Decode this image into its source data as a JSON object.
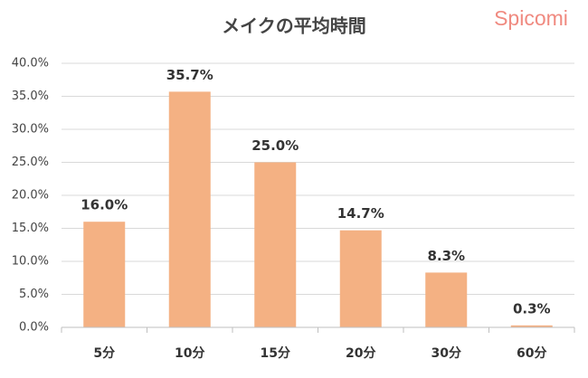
{
  "chart_data": {
    "type": "bar",
    "title": "メイクの平均時間",
    "watermark": "Spicomi",
    "categories": [
      "5分",
      "10分",
      "15分",
      "20分",
      "30分",
      "60分"
    ],
    "values": [
      16.0,
      35.7,
      25.0,
      14.7,
      8.3,
      0.3
    ],
    "value_labels": [
      "16.0%",
      "35.7%",
      "25.0%",
      "14.7%",
      "8.3%",
      "0.3%"
    ],
    "color": "#f4b183",
    "ylim": [
      0,
      40
    ],
    "yticks": [
      {
        "value": 0,
        "label": "0.0%"
      },
      {
        "value": 5,
        "label": "5.0%"
      },
      {
        "value": 10,
        "label": "10.0%"
      },
      {
        "value": 15,
        "label": "15.0%"
      },
      {
        "value": 20,
        "label": "20.0%"
      },
      {
        "value": 25,
        "label": "25.0%"
      },
      {
        "value": 30,
        "label": "30.0%"
      },
      {
        "value": 35,
        "label": "35.0%"
      },
      {
        "value": 40,
        "label": "40.0%"
      }
    ],
    "grid": true
  }
}
